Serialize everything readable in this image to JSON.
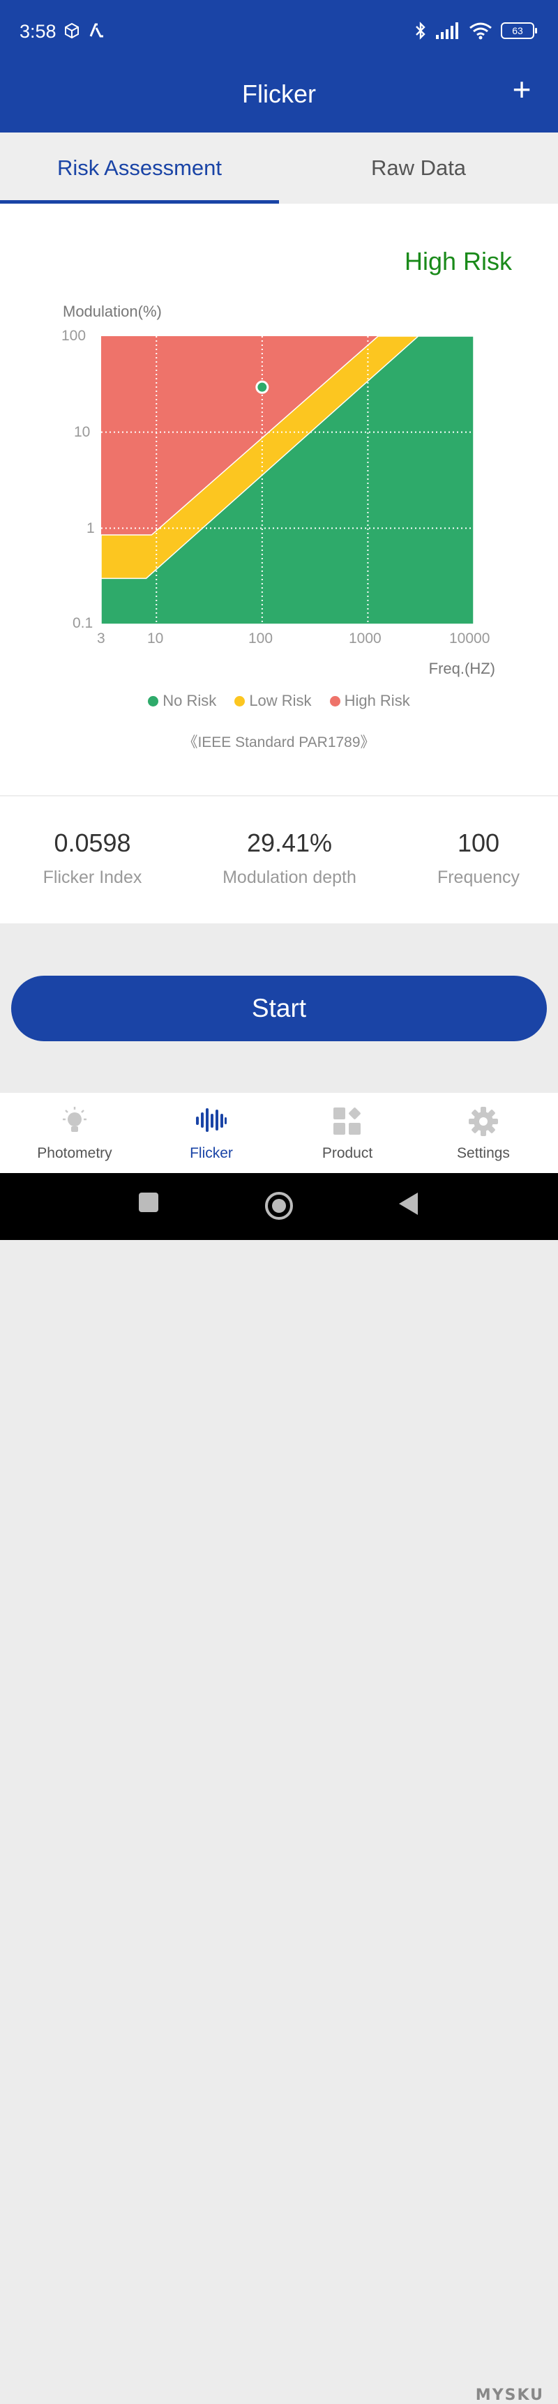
{
  "status": {
    "time": "3:58",
    "battery": "63"
  },
  "appbar": {
    "title": "Flicker",
    "add_label": "+"
  },
  "tabs": [
    {
      "label": "Risk Assessment"
    },
    {
      "label": "Raw Data"
    }
  ],
  "risk": {
    "label": "High Risk",
    "color": "#1a8a1a"
  },
  "chart_data": {
    "type": "scatter",
    "ylabel": "Modulation(%)",
    "xlabel": "Freq.(HZ)",
    "x_scale": "log",
    "y_scale": "log",
    "xlim": [
      3,
      10000
    ],
    "ylim": [
      0.1,
      100
    ],
    "xticks": [
      "3",
      "10",
      "100",
      "1000",
      "10000"
    ],
    "yticks": [
      "100",
      "10",
      "1",
      "0.1"
    ],
    "grid": true,
    "legend": "bottom",
    "regions": [
      {
        "name": "No Risk",
        "color": "#2eaa6a",
        "upper_boundary": [
          [
            3,
            0.3
          ],
          [
            8,
            0.3
          ],
          [
            3000,
            100
          ]
        ]
      },
      {
        "name": "Low Risk",
        "color": "#fcc620",
        "upper_boundary": [
          [
            3,
            0.85
          ],
          [
            9,
            0.85
          ],
          [
            1250,
            100
          ]
        ]
      },
      {
        "name": "High Risk",
        "color": "#ee736a"
      }
    ],
    "points": [
      {
        "x": 100,
        "y": 29.41
      }
    ]
  },
  "standard": "《IEEE Standard PAR1789》",
  "stats": [
    {
      "value": "0.0598",
      "label": "Flicker Index"
    },
    {
      "value": "29.41%",
      "label": "Modulation depth"
    },
    {
      "value": "100",
      "label": "Frequency"
    }
  ],
  "start_label": "Start",
  "nav": [
    {
      "label": "Photometry",
      "icon": "bulb-icon"
    },
    {
      "label": "Flicker",
      "icon": "waveform-icon"
    },
    {
      "label": "Product",
      "icon": "grid-icon"
    },
    {
      "label": "Settings",
      "icon": "gear-icon"
    }
  ],
  "colors": {
    "primary": "#1a44a6",
    "no_risk": "#2eaa6a",
    "low_risk": "#fcc620",
    "high_risk": "#ee736a"
  },
  "watermark": "MYSKU"
}
